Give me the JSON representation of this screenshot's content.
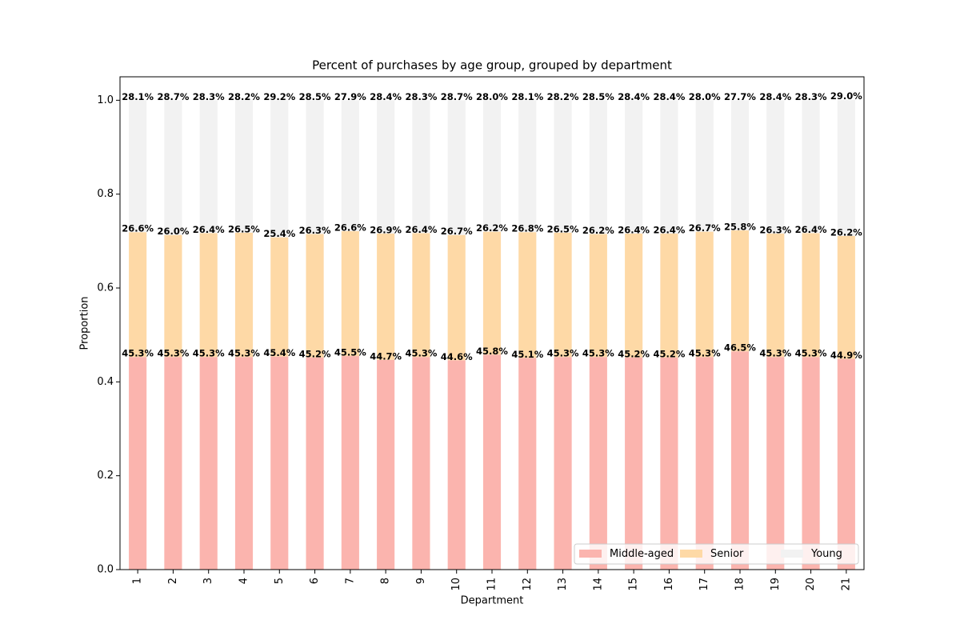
{
  "chart_data": {
    "type": "stacked_bar",
    "title": "Percent of purchases by age group, grouped by department",
    "x_label": "Department",
    "y_label": "Proportion",
    "categories": [
      "1",
      "2",
      "3",
      "4",
      "5",
      "6",
      "7",
      "8",
      "9",
      "10",
      "11",
      "12",
      "13",
      "14",
      "15",
      "16",
      "17",
      "18",
      "19",
      "20",
      "21"
    ],
    "series": [
      {
        "name": "Middle-aged",
        "color": "#fbb4ae",
        "values": [
          0.453,
          0.453,
          0.453,
          0.453,
          0.454,
          0.452,
          0.455,
          0.447,
          0.453,
          0.446,
          0.458,
          0.451,
          0.453,
          0.453,
          0.452,
          0.452,
          0.453,
          0.465,
          0.453,
          0.453,
          0.449
        ],
        "value_labels": [
          "45.3%",
          "45.3%",
          "45.3%",
          "45.3%",
          "45.4%",
          "45.2%",
          "45.5%",
          "44.7%",
          "45.3%",
          "44.6%",
          "45.8%",
          "45.1%",
          "45.3%",
          "45.3%",
          "45.2%",
          "45.2%",
          "45.3%",
          "46.5%",
          "45.3%",
          "45.3%",
          "44.9%"
        ]
      },
      {
        "name": "Senior",
        "color": "#fed9a6",
        "values": [
          0.266,
          0.26,
          0.264,
          0.265,
          0.254,
          0.263,
          0.266,
          0.269,
          0.264,
          0.267,
          0.262,
          0.268,
          0.265,
          0.262,
          0.264,
          0.264,
          0.267,
          0.258,
          0.263,
          0.264,
          0.262
        ],
        "value_labels": [
          "26.6%",
          "26.0%",
          "26.4%",
          "26.5%",
          "25.4%",
          "26.3%",
          "26.6%",
          "26.9%",
          "26.4%",
          "26.7%",
          "26.2%",
          "26.8%",
          "26.5%",
          "26.2%",
          "26.4%",
          "26.4%",
          "26.7%",
          "25.8%",
          "26.3%",
          "26.4%",
          "26.2%"
        ]
      },
      {
        "name": "Young",
        "color": "#f2f2f2",
        "values": [
          0.281,
          0.287,
          0.283,
          0.282,
          0.292,
          0.285,
          0.279,
          0.284,
          0.283,
          0.287,
          0.28,
          0.281,
          0.282,
          0.285,
          0.284,
          0.284,
          0.28,
          0.277,
          0.284,
          0.283,
          0.29
        ],
        "value_labels": [
          "28.1%",
          "28.7%",
          "28.3%",
          "28.2%",
          "29.2%",
          "28.5%",
          "27.9%",
          "28.4%",
          "28.3%",
          "28.7%",
          "28.0%",
          "28.1%",
          "28.2%",
          "28.5%",
          "28.4%",
          "28.4%",
          "28.0%",
          "27.7%",
          "28.4%",
          "28.3%",
          "29.0%"
        ]
      }
    ],
    "ylim": [
      0,
      1.05
    ],
    "yticks": [
      {
        "value": 0,
        "label": "0.0"
      },
      0.2,
      0.4,
      0.6,
      0.8,
      {
        "value": 1,
        "label": "1.0"
      }
    ],
    "legend": "lower right"
  }
}
